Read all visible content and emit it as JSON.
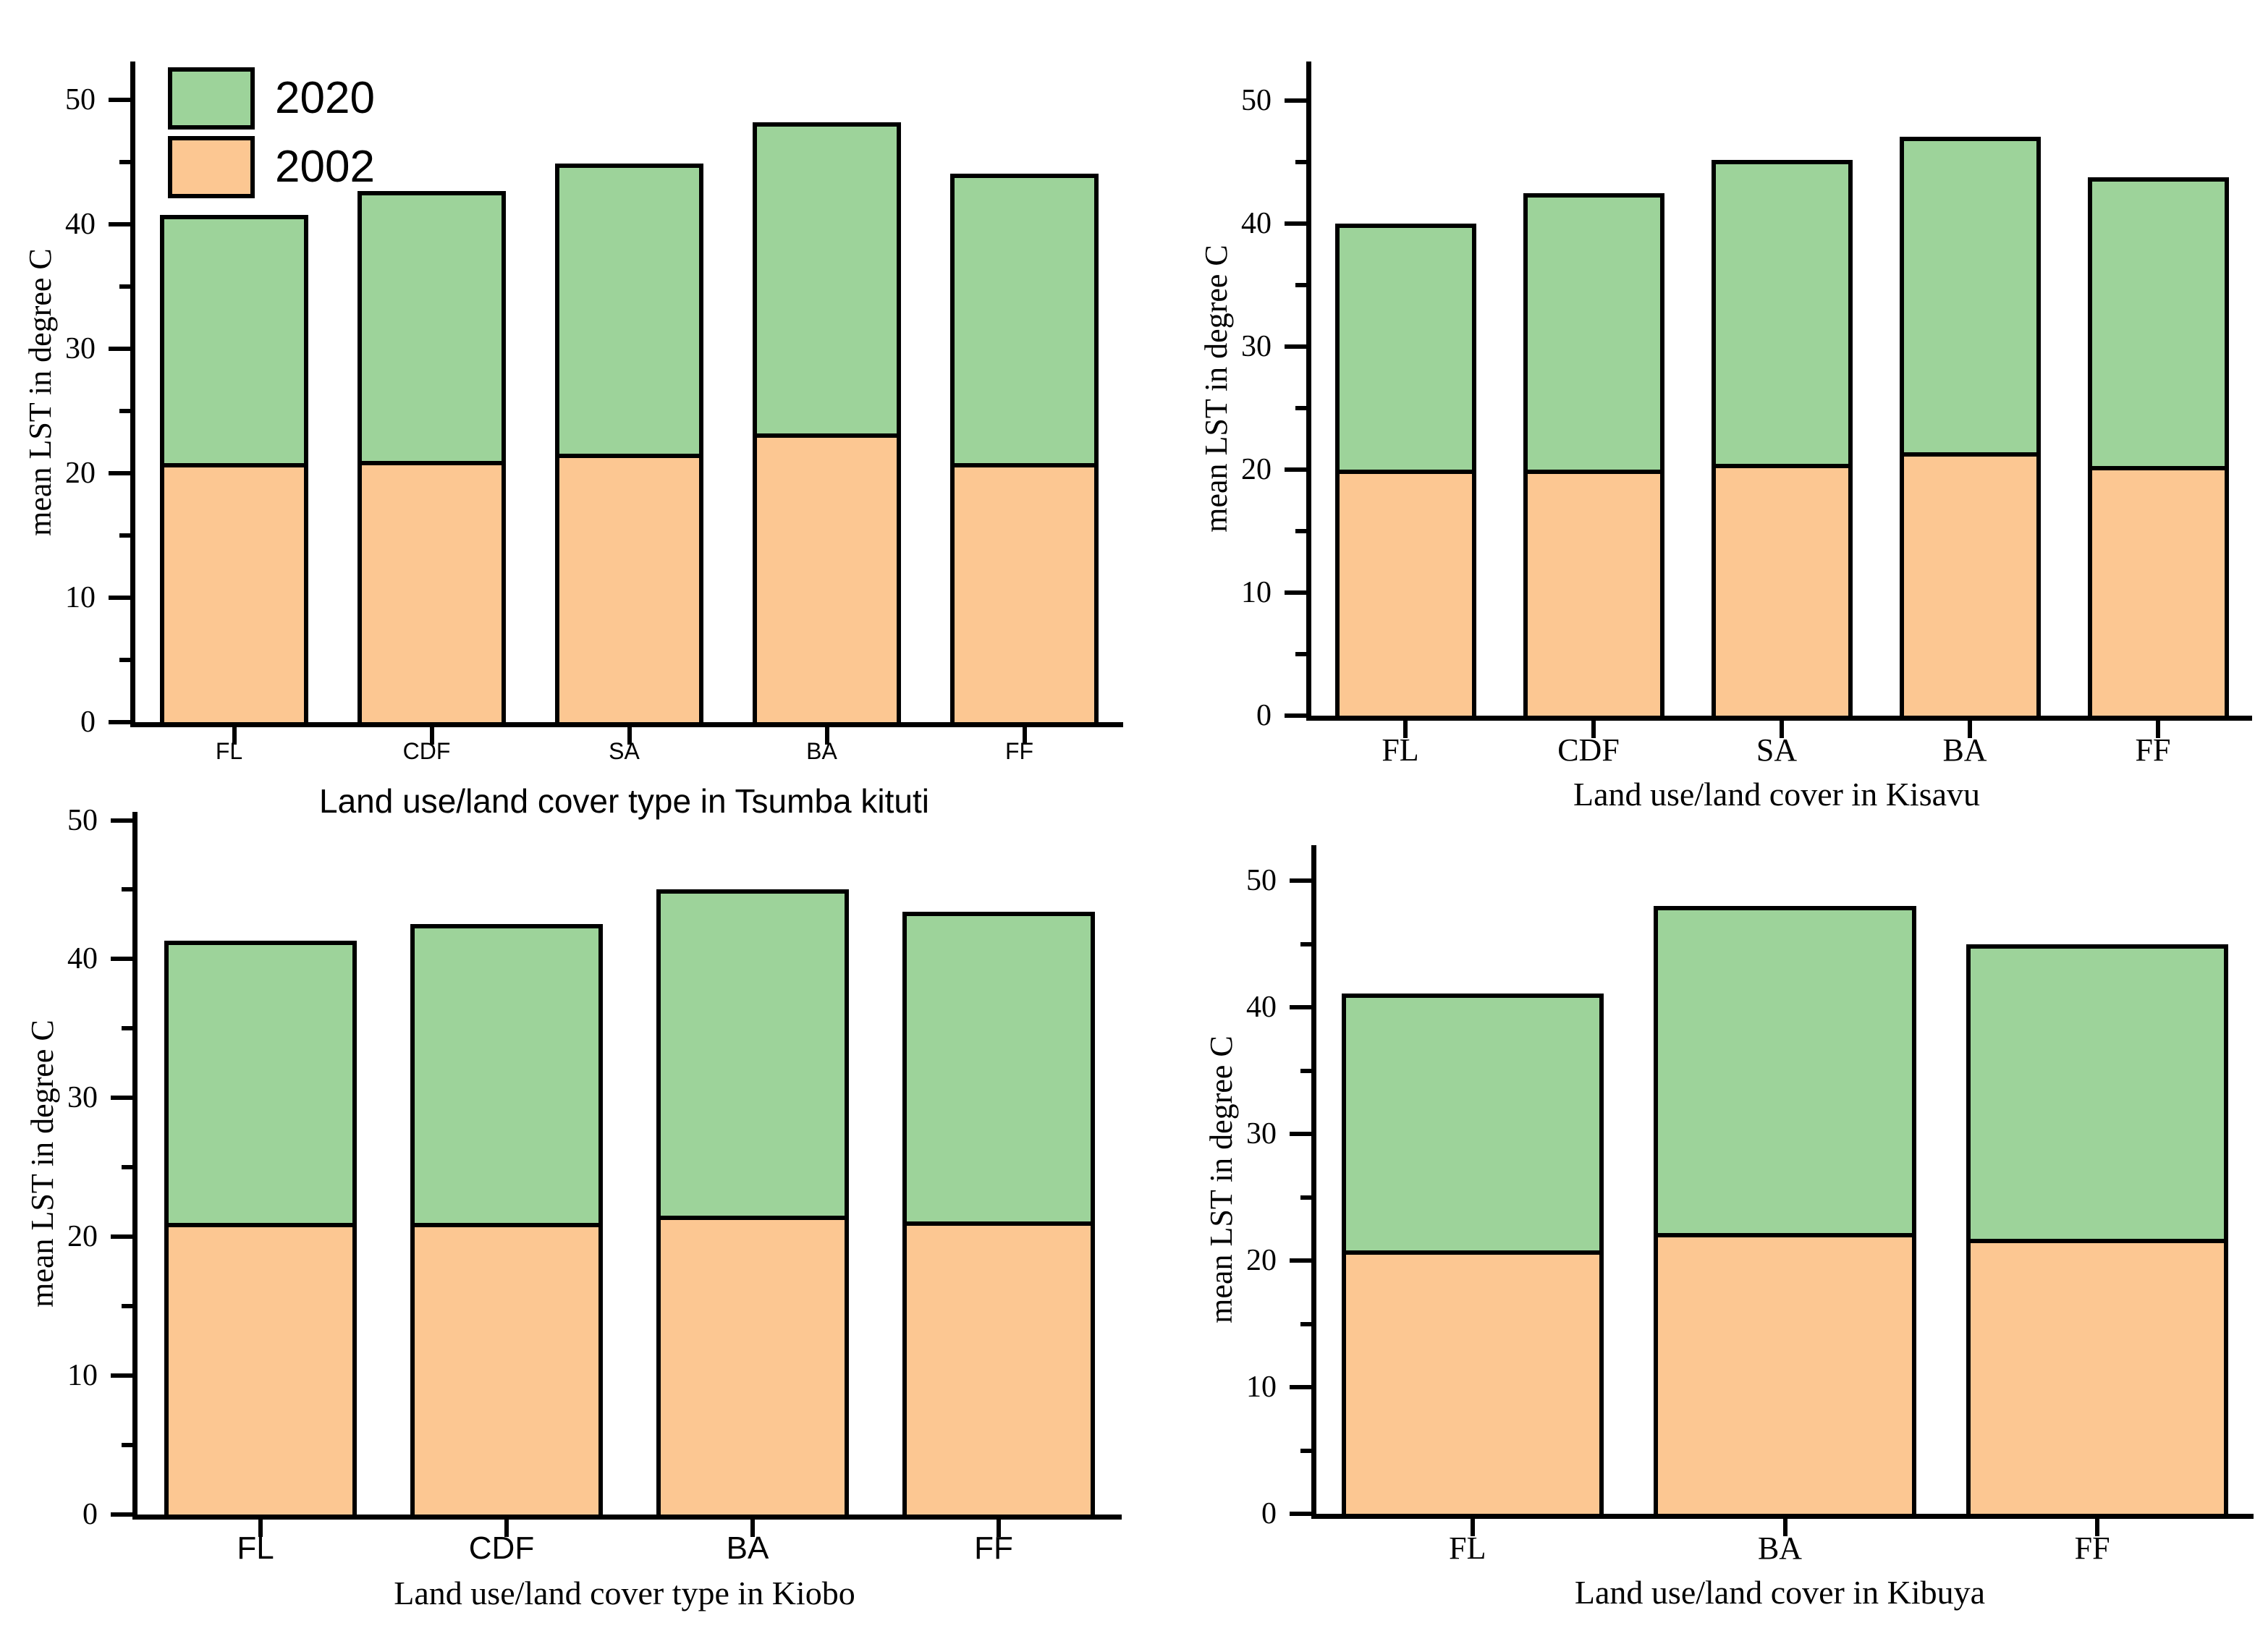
{
  "figure": {
    "background": "#ffffff",
    "y_axis_title": "mean LST in degree C"
  },
  "colors": {
    "green_2020": "#9dd39a",
    "orange_2002": "#fcc792",
    "outline": "#000000"
  },
  "legend": {
    "items": [
      {
        "label": "2020",
        "color_key": "green_2020"
      },
      {
        "label": "2002",
        "color_key": "orange_2002"
      }
    ]
  },
  "y_axis": {
    "title": "mean LST in degree C",
    "major_ticks": [
      0,
      10,
      20,
      30,
      40,
      50
    ],
    "minor_ticks": [
      5,
      15,
      25,
      35,
      45
    ]
  },
  "chart_data": [
    {
      "type": "stacked-bar",
      "title": "Land use/land cover type in Tsumba kituti",
      "categories": [
        "FL",
        "CDF",
        "SA",
        "BA",
        "FF"
      ],
      "series": [
        {
          "name": "2002",
          "values": [
            20.8,
            21.0,
            21.6,
            23.2,
            20.8
          ]
        },
        {
          "name": "2020",
          "values": [
            20.0,
            21.7,
            23.3,
            25.0,
            23.3
          ]
        }
      ],
      "stack_totals": [
        40.8,
        42.7,
        44.9,
        48.2,
        44.1
      ],
      "ylabel": "mean LST in degree C",
      "ylim": [
        0,
        53.1
      ],
      "legend_position": "top-left",
      "show_legend": true
    },
    {
      "type": "stacked-bar",
      "title": "Land use/land cover in Kisavu",
      "categories": [
        "FL",
        "CDF",
        "SA",
        "BA",
        "FF"
      ],
      "series": [
        {
          "name": "2002",
          "values": [
            20.0,
            20.0,
            20.5,
            21.4,
            20.3
          ]
        },
        {
          "name": "2020",
          "values": [
            20.0,
            22.5,
            24.7,
            25.7,
            23.5
          ]
        }
      ],
      "stack_totals": [
        40.0,
        42.5,
        45.2,
        47.1,
        43.8
      ],
      "ylabel": "mean LST in degree C",
      "ylim": [
        0,
        53.2
      ],
      "legend_position": "none",
      "show_legend": false
    },
    {
      "type": "stacked-bar",
      "title": "Land use/land cover type in Kiobo",
      "categories": [
        "FL",
        "CDF",
        "BA",
        "FF"
      ],
      "series": [
        {
          "name": "2002",
          "values": [
            21.0,
            21.0,
            21.5,
            21.1
          ]
        },
        {
          "name": "2020",
          "values": [
            20.3,
            21.5,
            23.5,
            22.3
          ]
        }
      ],
      "stack_totals": [
        41.3,
        42.5,
        45.0,
        43.4
      ],
      "ylabel": "mean LST in degree C",
      "ylim": [
        0,
        50.6
      ],
      "legend_position": "none",
      "show_legend": false
    },
    {
      "type": "stacked-bar",
      "title": "Land use/land cover in Kibuya",
      "categories": [
        "FL",
        "BA",
        "FF"
      ],
      "series": [
        {
          "name": "2002",
          "values": [
            20.8,
            22.2,
            21.7
          ]
        },
        {
          "name": "2020",
          "values": [
            20.3,
            25.8,
            23.3
          ]
        }
      ],
      "stack_totals": [
        41.1,
        48.0,
        45.0
      ],
      "ylabel": "mean LST in degree C",
      "ylim": [
        0,
        52.8
      ],
      "legend_position": "none",
      "show_legend": false
    }
  ]
}
